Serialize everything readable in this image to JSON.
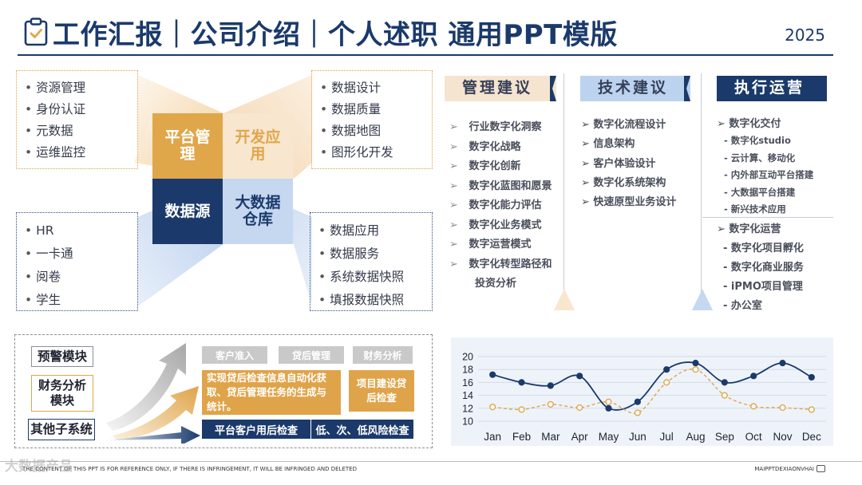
{
  "header": {
    "title": "工作汇报｜公司介绍｜个人述职 通用PPT模版",
    "year": "2025",
    "icon": "clipboard-check-icon"
  },
  "diagram": {
    "quadrants": {
      "top_left": "平台管理",
      "top_right": "开发应用",
      "bottom_left": "数据源",
      "bottom_right": "大数据仓库"
    },
    "boxes": {
      "top_left": [
        "资源管理",
        "身份认证",
        "元数据",
        "运维监控"
      ],
      "top_right": [
        "数据设计",
        "数据质量",
        "数据地图",
        "图形化开发"
      ],
      "bottom_left": [
        "HR",
        "一卡通",
        "阅卷",
        "学生"
      ],
      "bottom_right": [
        "数据应用",
        "数据服务",
        "系统数据快照",
        "填报数据快照"
      ]
    },
    "colors": {
      "orange": "#e0a64a",
      "light_orange": "#f8e6cf",
      "navy": "#1b3a6b",
      "light_blue": "#c5d8f0"
    }
  },
  "columns": [
    {
      "title": "管理建议",
      "items": [
        "行业数字化洞察",
        "数字化战略",
        "数字化创新",
        "数字化蓝图和愿景",
        "数字化能力评估",
        "数字化业务模式",
        "数字运营模式",
        "数字化转型路径和投资分析"
      ]
    },
    {
      "title": "技术建议",
      "items": [
        "数字化流程设计",
        "信息架构",
        "客户体验设计",
        "数字化系统架构",
        "快速原型业务设计"
      ]
    },
    {
      "title": "执行运营",
      "group1_head": "数字化交付",
      "group1_items": [
        "- 数字化studio",
        "- 云计算、移动化",
        "- 内外部互动平台搭建",
        "- 大数据平台搭建",
        "- 新兴技术应用"
      ],
      "group2_head": "数字化运营",
      "group2_items": [
        "- 数字化项目孵化",
        "- 数字化商业服务",
        "- iPMO项目管理",
        "- 办公室"
      ]
    }
  ],
  "flow": {
    "modules": [
      "预警模块",
      "财务分析模块",
      "其他子系统"
    ],
    "grey_tags": [
      "客户准入",
      "贷后管理",
      "财务分析"
    ],
    "orange_main": "实现贷后检查信息自动化获取、贷后管理任务的生成与统计。",
    "orange_side": "项目建设贷后检查",
    "navy_left": "平台客户用后检查",
    "navy_right": "低、次、低风险检查"
  },
  "chart_data": {
    "type": "line",
    "categories": [
      "Jan",
      "Feb",
      "Mar",
      "Apr",
      "May",
      "Jun",
      "Jul",
      "Aug",
      "Sep",
      "Oct",
      "Nov",
      "Dec"
    ],
    "series": [
      {
        "values": [
          17.2,
          16.0,
          15.5,
          17.0,
          12.0,
          13.0,
          18.0,
          19.0,
          16.0,
          17.0,
          19.0,
          16.8
        ],
        "color": "#1b3a6b",
        "style": "solid"
      },
      {
        "values": [
          12.2,
          11.8,
          12.6,
          12.1,
          13.0,
          11.3,
          16.0,
          18.0,
          14.0,
          12.3,
          12.1,
          11.8
        ],
        "color": "#e0a64a",
        "style": "dashed"
      }
    ],
    "yticks": [
      10,
      12,
      14,
      16,
      18,
      20
    ],
    "ylim": [
      10,
      20
    ],
    "grid": true,
    "title": "",
    "xlabel": "",
    "ylabel": ""
  },
  "footer": {
    "left": "THE CONTENT OF THIS PPT IS FOR REFERENCE ONLY, IF THERE IS INFRINGEMENT, IT WILL BE INFRINGED AND DELETED",
    "right": "MAIPPTDEXIAONVHAI",
    "watermark": "大数据产品"
  }
}
